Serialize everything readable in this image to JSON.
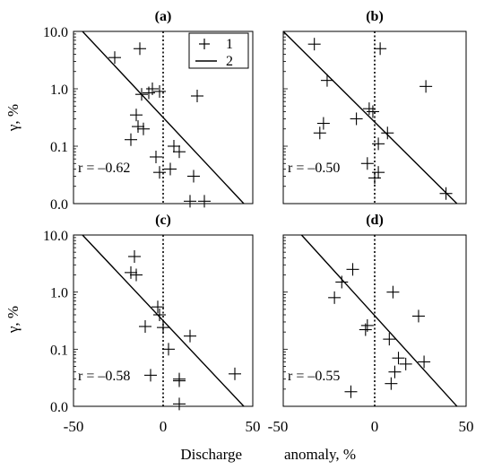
{
  "figure": {
    "ylabel": "γ, %",
    "xlabel_left": "Discharge",
    "xlabel_right": "anomaly, %",
    "x_ticks": [
      "-50",
      "0",
      "50"
    ],
    "y_ticks": [
      "10.0",
      "1.0",
      "0.1",
      "0.0"
    ],
    "legend": {
      "marker_label": "1",
      "line_label": "2"
    }
  },
  "chart_data": [
    {
      "type": "scatter",
      "panel": "(a)",
      "annotation": "r = –0.62",
      "xlim": [
        -50,
        50
      ],
      "ylim": [
        0.01,
        10
      ],
      "yscale": "log",
      "vline_x": 0,
      "points": [
        [
          -27,
          3.5
        ],
        [
          -13,
          5.0
        ],
        [
          -12,
          0.8
        ],
        [
          -6,
          1.0
        ],
        [
          -2,
          0.9
        ],
        [
          -8,
          0.85
        ],
        [
          -15,
          0.35
        ],
        [
          -14,
          0.22
        ],
        [
          -11,
          0.2
        ],
        [
          -18,
          0.13
        ],
        [
          6,
          0.1
        ],
        [
          9,
          0.08
        ],
        [
          -4,
          0.065
        ],
        [
          -2,
          0.035
        ],
        [
          4,
          0.04
        ],
        [
          19,
          0.75
        ],
        [
          17,
          0.03
        ],
        [
          15,
          0.011
        ],
        [
          23,
          0.011
        ]
      ],
      "fit_line": {
        "x": [
          -45,
          45
        ],
        "y": [
          10,
          0.01
        ]
      }
    },
    {
      "type": "scatter",
      "panel": "(b)",
      "annotation": "r = –0.50",
      "xlim": [
        -50,
        50
      ],
      "ylim": [
        0.01,
        10
      ],
      "yscale": "log",
      "vline_x": 0,
      "points": [
        [
          -33,
          6.0
        ],
        [
          3,
          5.0
        ],
        [
          -26,
          1.4
        ],
        [
          28,
          1.1
        ],
        [
          -3,
          0.45
        ],
        [
          -1,
          0.4
        ],
        [
          -10,
          0.3
        ],
        [
          -28,
          0.25
        ],
        [
          -30,
          0.17
        ],
        [
          7,
          0.17
        ],
        [
          2,
          0.11
        ],
        [
          -4,
          0.05
        ],
        [
          2,
          0.035
        ],
        [
          0,
          0.028
        ],
        [
          39,
          0.015
        ]
      ],
      "fit_line": {
        "x": [
          -50,
          45
        ],
        "y": [
          10,
          0.01
        ]
      }
    },
    {
      "type": "scatter",
      "panel": "(c)",
      "annotation": "r = –0.58",
      "xlim": [
        -50,
        50
      ],
      "ylim": [
        0.01,
        10
      ],
      "yscale": "log",
      "vline_x": 0,
      "points": [
        [
          -16,
          4.2
        ],
        [
          -18,
          2.2
        ],
        [
          -15,
          2.0
        ],
        [
          -3,
          0.55
        ],
        [
          -2,
          0.4
        ],
        [
          -10,
          0.25
        ],
        [
          0,
          0.24
        ],
        [
          15,
          0.17
        ],
        [
          3,
          0.1
        ],
        [
          -7,
          0.035
        ],
        [
          9,
          0.03
        ],
        [
          9,
          0.028
        ],
        [
          9,
          0.011
        ],
        [
          40,
          0.037
        ]
      ],
      "fit_line": {
        "x": [
          -45,
          45
        ],
        "y": [
          10,
          0.01
        ]
      }
    },
    {
      "type": "scatter",
      "panel": "(d)",
      "annotation": "r = –0.55",
      "xlim": [
        -50,
        50
      ],
      "ylim": [
        0.01,
        10
      ],
      "yscale": "log",
      "vline_x": 0,
      "points": [
        [
          -12,
          2.5
        ],
        [
          -18,
          1.5
        ],
        [
          -22,
          0.8
        ],
        [
          10,
          1.0
        ],
        [
          24,
          0.38
        ],
        [
          -4,
          0.26
        ],
        [
          -5,
          0.22
        ],
        [
          8,
          0.15
        ],
        [
          13,
          0.07
        ],
        [
          17,
          0.055
        ],
        [
          27,
          0.06
        ],
        [
          11,
          0.04
        ],
        [
          9,
          0.025
        ],
        [
          -13,
          0.018
        ]
      ],
      "fit_line": {
        "x": [
          -40,
          45
        ],
        "y": [
          10,
          0.01
        ]
      }
    }
  ]
}
